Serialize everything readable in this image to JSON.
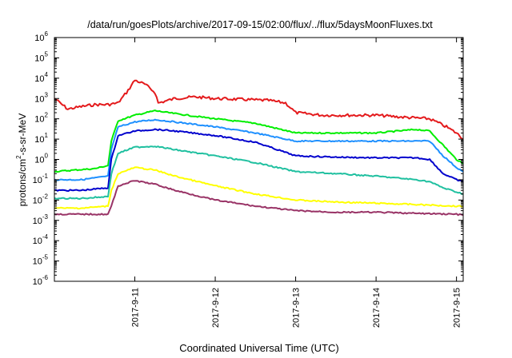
{
  "chart_data": {
    "type": "line",
    "title": "/data/run/goesPlots/archive/2017-09-15/02:00/flux/../flux/5daysMoonFluxes.txt",
    "xlabel": "Coordinated Universal Time (UTC)",
    "ylabel": "protons/cm²-s-sr-MeV",
    "ylabel_parts": [
      "protons/cm",
      "2",
      "-s-sr-MeV"
    ],
    "y_scale": "log",
    "ylim_exponents": [
      -6,
      6
    ],
    "y_ticks": [
      {
        "base": "10",
        "exp": "6",
        "value": 1000000.0
      },
      {
        "base": "10",
        "exp": "5",
        "value": 100000.0
      },
      {
        "base": "10",
        "exp": "4",
        "value": 10000.0
      },
      {
        "base": "10",
        "exp": "3",
        "value": 1000.0
      },
      {
        "base": "10",
        "exp": "2",
        "value": 100.0
      },
      {
        "base": "10",
        "exp": "1",
        "value": 10.0
      },
      {
        "base": "10",
        "exp": "0",
        "value": 1.0
      },
      {
        "base": "10",
        "exp": "-1",
        "value": 0.1
      },
      {
        "base": "10",
        "exp": "-2",
        "value": 0.01
      },
      {
        "base": "10",
        "exp": "-3",
        "value": 0.001
      },
      {
        "base": "10",
        "exp": "-4",
        "value": 0.0001
      },
      {
        "base": "10",
        "exp": "-5",
        "value": 1e-05
      },
      {
        "base": "10",
        "exp": "-6",
        "value": 1e-06
      }
    ],
    "xlim": [
      "2017-09-10 00:00",
      "2017-09-15 02:00"
    ],
    "x_ticks": [
      "2017-9-11",
      "2017-9-12",
      "2017-9-13",
      "2017-9-14",
      "2017-9-15"
    ],
    "grid": false,
    "series": [
      {
        "color": "#e41a1c",
        "x": [
          "2017-09-10 00:00",
          "2017-09-10 04:00",
          "2017-09-10 08:00",
          "2017-09-10 12:00",
          "2017-09-10 16:00",
          "2017-09-10 19:00",
          "2017-09-10 22:00",
          "2017-09-11 00:00",
          "2017-09-11 03:00",
          "2017-09-11 06:00",
          "2017-09-11 07:00",
          "2017-09-11 12:00",
          "2017-09-11 18:00",
          "2017-09-12 00:00",
          "2017-09-12 08:00",
          "2017-09-12 16:00",
          "2017-09-12 21:00",
          "2017-09-13 00:00",
          "2017-09-13 08:00",
          "2017-09-13 16:00",
          "2017-09-14 00:00",
          "2017-09-14 08:00",
          "2017-09-14 16:00",
          "2017-09-14 18:00",
          "2017-09-14 21:00",
          "2017-09-15 00:00",
          "2017-09-15 02:00"
        ],
        "values": [
          1000,
          300,
          400,
          500,
          500,
          600,
          2500,
          8000,
          5000,
          2000,
          600,
          1000,
          1200,
          1000,
          900,
          800,
          600,
          200,
          150,
          150,
          150,
          120,
          100,
          70,
          40,
          20,
          10
        ]
      },
      {
        "color": "#00ee00",
        "x": [
          "2017-09-10 00:00",
          "2017-09-10 06:00",
          "2017-09-10 12:00",
          "2017-09-10 16:00",
          "2017-09-10 17:00",
          "2017-09-10 19:00",
          "2017-09-11 00:00",
          "2017-09-11 06:00",
          "2017-09-11 12:00",
          "2017-09-12 00:00",
          "2017-09-12 12:00",
          "2017-09-13 00:00",
          "2017-09-13 12:00",
          "2017-09-14 00:00",
          "2017-09-14 12:00",
          "2017-09-14 16:00",
          "2017-09-14 20:00",
          "2017-09-15 00:00",
          "2017-09-15 02:00"
        ],
        "values": [
          0.25,
          0.3,
          0.35,
          0.5,
          8,
          80,
          150,
          250,
          180,
          100,
          60,
          20,
          20,
          20,
          30,
          25,
          5,
          1,
          0.6
        ]
      },
      {
        "color": "#1e90ff",
        "x": [
          "2017-09-10 00:00",
          "2017-09-10 08:00",
          "2017-09-10 16:00",
          "2017-09-10 17:00",
          "2017-09-10 19:00",
          "2017-09-11 00:00",
          "2017-09-11 06:00",
          "2017-09-11 12:00",
          "2017-09-12 00:00",
          "2017-09-12 12:00",
          "2017-09-13 00:00",
          "2017-09-13 12:00",
          "2017-09-14 00:00",
          "2017-09-14 12:00",
          "2017-09-14 16:00",
          "2017-09-14 20:00",
          "2017-09-15 00:00",
          "2017-09-15 02:00"
        ],
        "values": [
          0.1,
          0.1,
          0.15,
          3,
          40,
          70,
          90,
          70,
          40,
          20,
          8,
          8,
          8,
          8,
          8,
          1.5,
          0.4,
          0.25
        ]
      },
      {
        "color": "#0000cd",
        "x": [
          "2017-09-10 00:00",
          "2017-09-10 08:00",
          "2017-09-10 16:00",
          "2017-09-10 17:00",
          "2017-09-10 19:00",
          "2017-09-11 00:00",
          "2017-09-11 06:00",
          "2017-09-11 12:00",
          "2017-09-12 00:00",
          "2017-09-12 12:00",
          "2017-09-13 00:00",
          "2017-09-13 12:00",
          "2017-09-14 00:00",
          "2017-09-14 12:00",
          "2017-09-14 16:00",
          "2017-09-14 20:00",
          "2017-09-15 00:00",
          "2017-09-15 02:00"
        ],
        "values": [
          0.03,
          0.03,
          0.04,
          1,
          15,
          25,
          30,
          25,
          15,
          7,
          1.5,
          1.3,
          1.2,
          1.2,
          1,
          0.2,
          0.1,
          0.08
        ]
      },
      {
        "color": "#20c0a0",
        "x": [
          "2017-09-10 00:00",
          "2017-09-10 08:00",
          "2017-09-10 16:00",
          "2017-09-10 17:00",
          "2017-09-10 19:00",
          "2017-09-11 00:00",
          "2017-09-11 06:00",
          "2017-09-11 12:00",
          "2017-09-12 00:00",
          "2017-09-12 12:00",
          "2017-09-13 00:00",
          "2017-09-13 12:00",
          "2017-09-14 00:00",
          "2017-09-14 12:00",
          "2017-09-14 16:00",
          "2017-09-14 20:00",
          "2017-09-15 00:00",
          "2017-09-15 02:00"
        ],
        "values": [
          0.012,
          0.012,
          0.015,
          0.2,
          2,
          4,
          4.5,
          3,
          1.5,
          0.7,
          0.25,
          0.2,
          0.15,
          0.1,
          0.08,
          0.04,
          0.025,
          0.02
        ]
      },
      {
        "color": "#ffff00",
        "x": [
          "2017-09-10 00:00",
          "2017-09-10 08:00",
          "2017-09-10 16:00",
          "2017-09-10 17:00",
          "2017-09-10 19:00",
          "2017-09-11 00:00",
          "2017-09-11 06:00",
          "2017-09-11 12:00",
          "2017-09-12 00:00",
          "2017-09-12 12:00",
          "2017-09-13 00:00",
          "2017-09-13 12:00",
          "2017-09-14 00:00",
          "2017-09-14 12:00",
          "2017-09-15 00:00",
          "2017-09-15 02:00"
        ],
        "values": [
          0.004,
          0.004,
          0.005,
          0.03,
          0.2,
          0.4,
          0.3,
          0.15,
          0.05,
          0.02,
          0.01,
          0.008,
          0.007,
          0.006,
          0.005,
          0.005
        ]
      },
      {
        "color": "#993366",
        "x": [
          "2017-09-10 00:00",
          "2017-09-10 08:00",
          "2017-09-10 16:00",
          "2017-09-10 17:00",
          "2017-09-10 19:00",
          "2017-09-11 00:00",
          "2017-09-11 06:00",
          "2017-09-11 12:00",
          "2017-09-12 00:00",
          "2017-09-12 12:00",
          "2017-09-13 00:00",
          "2017-09-13 12:00",
          "2017-09-14 00:00",
          "2017-09-14 12:00",
          "2017-09-15 00:00",
          "2017-09-15 02:00"
        ],
        "values": [
          0.002,
          0.002,
          0.002,
          0.005,
          0.05,
          0.09,
          0.06,
          0.03,
          0.01,
          0.005,
          0.003,
          0.0025,
          0.0025,
          0.0022,
          0.002,
          0.0018
        ]
      }
    ]
  }
}
